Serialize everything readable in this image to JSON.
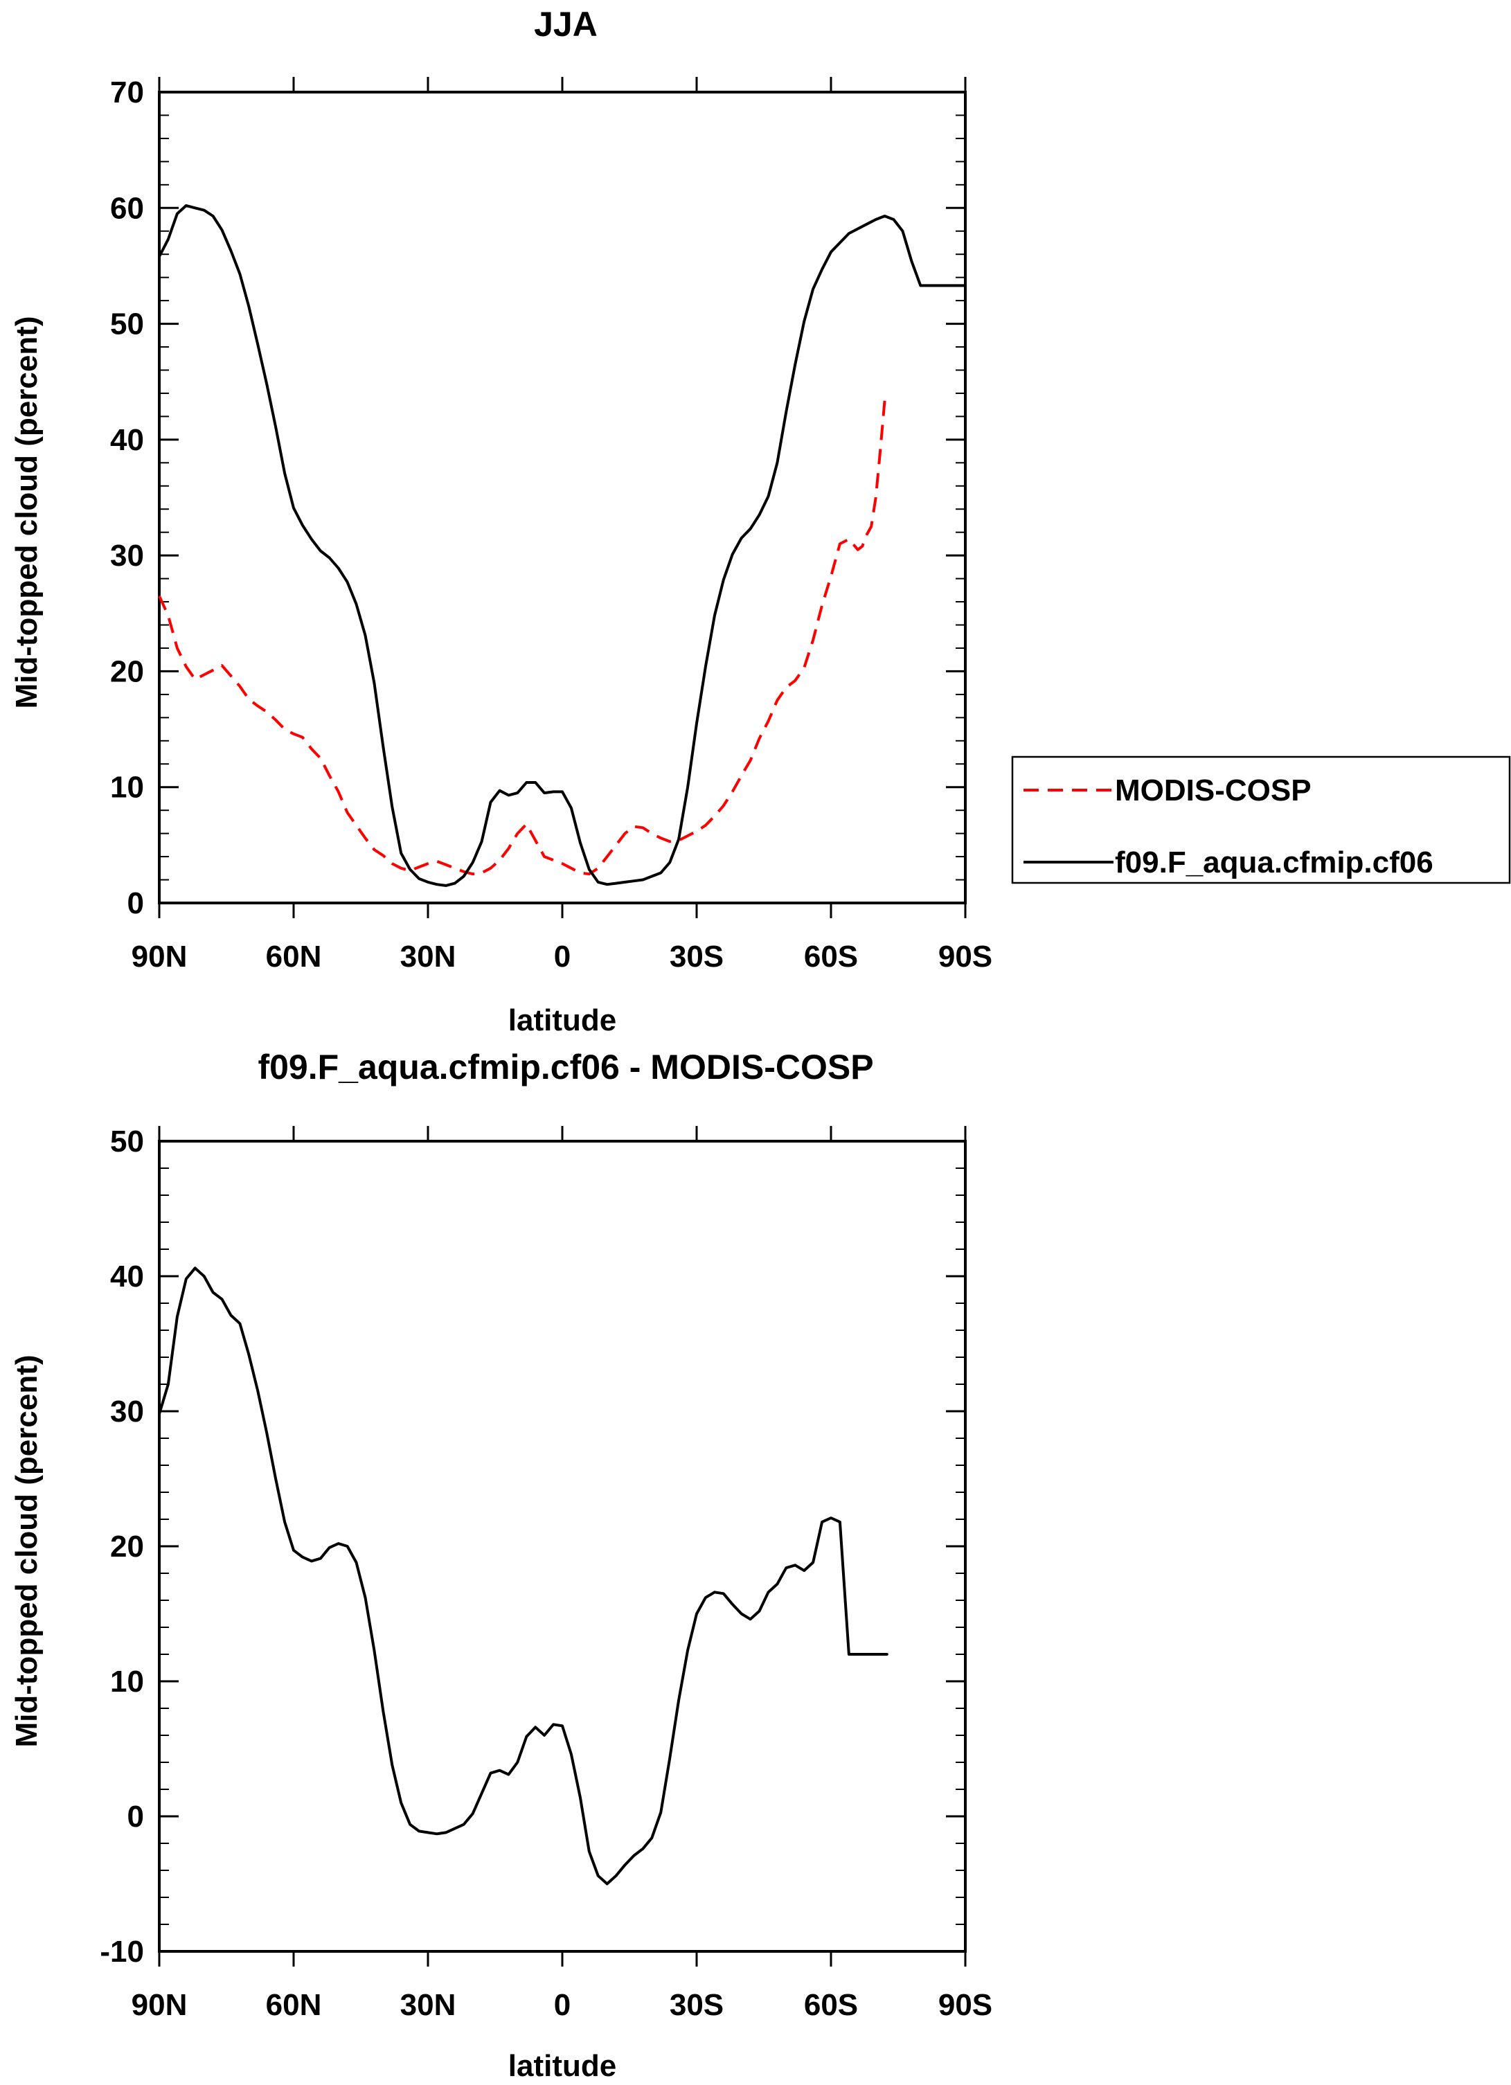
{
  "chart_data": [
    {
      "type": "line",
      "title": "JJA",
      "xlabel": "latitude",
      "ylabel": "Mid-topped cloud (percent)",
      "xlim": [
        90,
        -90
      ],
      "ylim": [
        0,
        70
      ],
      "x_ticks": [
        90,
        60,
        30,
        0,
        -30,
        -60,
        -90
      ],
      "x_tick_labels": [
        "90N",
        "60N",
        "30N",
        "0",
        "30S",
        "60S",
        "90S"
      ],
      "y_ticks": [
        0,
        10,
        20,
        30,
        40,
        50,
        60,
        70
      ],
      "y_tick_labels": [
        "0",
        "10",
        "20",
        "30",
        "40",
        "50",
        "60",
        "70"
      ],
      "legend": {
        "position": "right"
      },
      "series": [
        {
          "name": "MODIS-COSP",
          "color": "#ff0000",
          "dash": "dashed",
          "x": [
            90,
            88,
            86,
            84,
            82,
            80,
            78,
            76,
            74,
            72,
            70,
            68,
            66,
            64,
            62,
            60,
            58,
            56,
            54,
            52,
            50,
            48,
            46,
            44,
            42,
            40,
            38,
            36,
            34,
            32,
            30,
            28,
            26,
            24,
            22,
            20,
            18,
            16,
            14,
            12,
            10,
            8,
            6,
            4,
            2,
            0,
            -2,
            -4,
            -6,
            -8,
            -10,
            -12,
            -14,
            -16,
            -18,
            -20,
            -22,
            -24,
            -26,
            -28,
            -30,
            -32,
            -34,
            -36,
            -38,
            -40,
            -42,
            -44,
            -46,
            -48,
            -50,
            -52,
            -54,
            -56,
            -58,
            -60,
            -62,
            -64,
            -66,
            -67,
            -68,
            -69,
            -70,
            -71,
            -72,
            -72.5
          ],
          "y": [
            26.5,
            24.8,
            22.0,
            20.4,
            19.3,
            19.7,
            20.1,
            20.5,
            19.6,
            18.7,
            17.6,
            17.0,
            16.5,
            15.8,
            15.0,
            14.6,
            14.3,
            13.3,
            12.5,
            11.0,
            9.6,
            7.8,
            6.7,
            5.6,
            4.6,
            4.1,
            3.4,
            3.0,
            2.8,
            3.1,
            3.4,
            3.6,
            3.3,
            3.0,
            2.7,
            2.5,
            2.6,
            3.0,
            3.7,
            4.7,
            6.0,
            6.8,
            5.4,
            4.0,
            3.7,
            3.4,
            3.0,
            2.6,
            2.5,
            3.0,
            4.0,
            5.0,
            6.0,
            6.6,
            6.5,
            6.0,
            5.6,
            5.3,
            5.4,
            5.8,
            6.2,
            6.7,
            7.5,
            8.4,
            9.6,
            11.0,
            12.3,
            14.2,
            15.7,
            17.5,
            18.6,
            19.2,
            20.3,
            22.7,
            25.7,
            28.2,
            31.0,
            31.4,
            30.5,
            30.8,
            31.8,
            32.5,
            35.0,
            39.0,
            43.4,
            43.4
          ]
        },
        {
          "name": "f09.F_aqua.cfmip.cf06",
          "color": "#000000",
          "dash": "solid",
          "x": [
            90,
            88,
            86,
            84,
            82,
            80,
            78,
            76,
            74,
            72,
            70,
            68,
            66,
            64,
            62,
            60,
            58,
            56,
            54,
            52,
            50,
            48,
            46,
            44,
            42,
            40,
            38,
            36,
            34,
            32,
            30,
            28,
            26,
            24,
            22,
            20,
            18,
            16,
            14,
            12,
            10,
            8,
            6,
            4,
            2,
            0,
            -2,
            -4,
            -6,
            -8,
            -10,
            -12,
            -14,
            -16,
            -18,
            -20,
            -22,
            -24,
            -26,
            -28,
            -30,
            -32,
            -34,
            -36,
            -38,
            -40,
            -42,
            -44,
            -46,
            -48,
            -50,
            -52,
            -54,
            -56,
            -58,
            -60,
            -62,
            -64,
            -66,
            -68,
            -70,
            -72,
            -74,
            -76,
            -78,
            -80,
            -82,
            -84,
            -86,
            -88,
            -90
          ],
          "y": [
            55.8,
            57.3,
            59.5,
            60.2,
            60.0,
            59.8,
            59.3,
            58.1,
            56.3,
            54.3,
            51.5,
            48.2,
            44.8,
            41.1,
            37.1,
            34.1,
            32.6,
            31.4,
            30.4,
            29.8,
            28.9,
            27.7,
            25.8,
            23.1,
            19.0,
            13.5,
            8.3,
            4.3,
            2.9,
            2.1,
            1.8,
            1.6,
            1.5,
            1.7,
            2.3,
            3.5,
            5.3,
            8.7,
            9.7,
            9.3,
            9.5,
            10.4,
            10.4,
            9.5,
            9.6,
            9.6,
            8.2,
            5.2,
            2.9,
            1.8,
            1.6,
            1.7,
            1.8,
            1.9,
            2.0,
            2.3,
            2.6,
            3.5,
            5.5,
            10.0,
            15.5,
            20.4,
            24.8,
            27.9,
            30.1,
            31.5,
            32.3,
            33.5,
            35.1,
            38.0,
            42.4,
            46.5,
            50.2,
            53.0,
            54.7,
            56.2,
            57.0,
            57.8,
            58.2,
            58.6,
            59.0,
            59.3,
            59.0,
            58.0,
            55.4,
            53.3,
            53.3,
            53.3,
            53.3,
            53.3,
            53.3
          ]
        }
      ]
    },
    {
      "type": "line",
      "title": "f09.F_aqua.cfmip.cf06 - MODIS-COSP",
      "xlabel": "latitude",
      "ylabel": "Mid-topped cloud (percent)",
      "xlim": [
        90,
        -90
      ],
      "ylim": [
        -10,
        50
      ],
      "x_ticks": [
        90,
        60,
        30,
        0,
        -30,
        -60,
        -90
      ],
      "x_tick_labels": [
        "90N",
        "60N",
        "30N",
        "0",
        "30S",
        "60S",
        "90S"
      ],
      "y_ticks": [
        -10,
        0,
        10,
        20,
        30,
        40,
        50
      ],
      "y_tick_labels": [
        "-10",
        "0",
        "10",
        "20",
        "30",
        "40",
        "50"
      ],
      "series": [
        {
          "name": "f09.F_aqua.cfmip.cf06 - MODIS-COSP",
          "color": "#000000",
          "dash": "solid",
          "x": [
            90,
            88,
            86,
            84,
            82,
            80,
            78,
            76,
            74,
            72,
            70,
            68,
            66,
            64,
            62,
            60,
            58,
            56,
            54,
            52,
            50,
            48,
            46,
            44,
            42,
            40,
            38,
            36,
            34,
            32,
            30,
            28,
            26,
            24,
            22,
            20,
            18,
            16,
            14,
            12,
            10,
            8,
            6,
            4,
            2,
            0,
            -2,
            -4,
            -6,
            -8,
            -10,
            -12,
            -14,
            -16,
            -18,
            -20,
            -22,
            -24,
            -26,
            -28,
            -30,
            -32,
            -34,
            -36,
            -38,
            -40,
            -42,
            -44,
            -46,
            -48,
            -50,
            -52,
            -54,
            -56,
            -58,
            -60,
            -62,
            -64,
            -66,
            -67,
            -68,
            -69,
            -70,
            -71,
            -72,
            -72.5
          ],
          "y": [
            29.8,
            32.0,
            37.0,
            39.8,
            40.6,
            40.0,
            38.8,
            38.3,
            37.1,
            36.5,
            34.2,
            31.5,
            28.4,
            25.0,
            21.8,
            19.7,
            19.2,
            18.9,
            19.1,
            19.9,
            20.2,
            20.0,
            18.8,
            16.2,
            12.3,
            7.8,
            3.8,
            1.0,
            -0.6,
            -1.1,
            -1.2,
            -1.3,
            -1.2,
            -0.9,
            -0.6,
            0.2,
            1.7,
            3.2,
            3.4,
            3.1,
            4.0,
            5.9,
            6.6,
            6.0,
            6.8,
            6.7,
            4.6,
            1.4,
            -2.6,
            -4.4,
            -5.0,
            -4.4,
            -3.6,
            -2.9,
            -2.4,
            -1.6,
            0.3,
            4.3,
            8.6,
            12.3,
            15.0,
            16.2,
            16.6,
            16.5,
            15.7,
            15.0,
            14.6,
            15.2,
            16.6,
            17.2,
            18.4,
            18.6,
            18.2,
            18.8,
            21.8,
            22.1,
            21.8,
            12.0,
            12.0,
            12.0,
            12.0,
            12.0,
            12.0,
            12.0,
            12.0,
            12.0
          ]
        }
      ]
    }
  ]
}
